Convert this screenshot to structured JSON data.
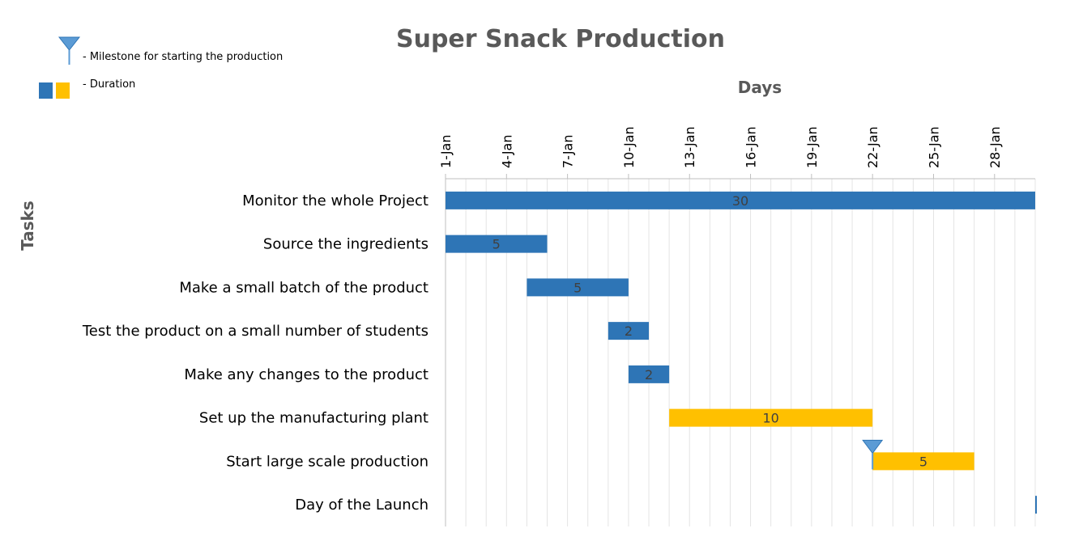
{
  "chart_data": {
    "type": "gantt",
    "title": "Super Snack Production",
    "xlabel": "Days",
    "ylabel": "Tasks",
    "x_ticks": [
      "1-Jan",
      "4-Jan",
      "7-Jan",
      "10-Jan",
      "13-Jan",
      "16-Jan",
      "19-Jan",
      "22-Jan",
      "25-Jan",
      "28-Jan"
    ],
    "x_range_days": [
      1,
      30
    ],
    "legend": {
      "milestone": "- Milestone for starting the production",
      "duration": "- Duration"
    },
    "colors": {
      "blue": "#2E75B6",
      "yellow": "#FFC000",
      "milestone": "#5B9BD5",
      "grid": "#D9D9D9"
    },
    "tasks": [
      {
        "name": "Monitor the whole Project",
        "start_day": 1,
        "duration": 30,
        "label": "30",
        "color": "blue"
      },
      {
        "name": "Source the ingredients",
        "start_day": 1,
        "duration": 5,
        "label": "5",
        "color": "blue"
      },
      {
        "name": "Make a small batch of the product",
        "start_day": 5,
        "duration": 5,
        "label": "5",
        "color": "blue"
      },
      {
        "name": "Test the product on a small number of students",
        "start_day": 9,
        "duration": 2,
        "label": "2",
        "color": "blue"
      },
      {
        "name": "Make any changes to the product",
        "start_day": 10,
        "duration": 2,
        "label": "2",
        "color": "blue"
      },
      {
        "name": "Set up the manufacturing plant",
        "start_day": 12,
        "duration": 10,
        "label": "10",
        "color": "yellow"
      },
      {
        "name": "Start large scale production",
        "start_day": 22,
        "duration": 5,
        "label": "5",
        "color": "yellow",
        "milestone": true
      },
      {
        "name": "Day of the Launch",
        "start_day": 30,
        "duration": 0,
        "label": "",
        "color": "blue"
      }
    ]
  }
}
